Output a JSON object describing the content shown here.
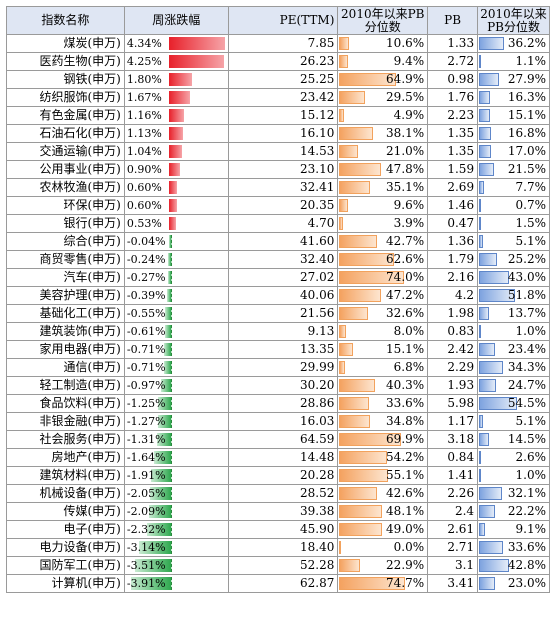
{
  "headers": {
    "name": "指数名称",
    "change": "周涨跌幅",
    "pe": "PE(TTM)",
    "pe_pct": "2010年以来PB分位数",
    "pb": "PB",
    "pb_pct": "2010年以来PB分位数"
  },
  "colors": {
    "header_bg": "#dfe6f3",
    "positive_bar": "#e8202a",
    "negative_bar": "#2fa84f",
    "pe_pct_bar": "#f4a260",
    "pb_pct_bar": "#7ea3df"
  },
  "rows": [
    {
      "name": "煤炭(申万)",
      "change": "4.34%",
      "pe": "7.85",
      "pe_pct": "10.6%",
      "pb": "1.33",
      "pb_pct": "36.2%"
    },
    {
      "name": "医药生物(申万)",
      "change": "4.25%",
      "pe": "26.23",
      "pe_pct": "9.4%",
      "pb": "2.72",
      "pb_pct": "1.1%"
    },
    {
      "name": "钢铁(申万)",
      "change": "1.80%",
      "pe": "25.25",
      "pe_pct": "64.9%",
      "pb": "0.98",
      "pb_pct": "27.9%"
    },
    {
      "name": "纺织服饰(申万)",
      "change": "1.67%",
      "pe": "23.42",
      "pe_pct": "29.5%",
      "pb": "1.76",
      "pb_pct": "16.3%"
    },
    {
      "name": "有色金属(申万)",
      "change": "1.16%",
      "pe": "15.12",
      "pe_pct": "4.9%",
      "pb": "2.23",
      "pb_pct": "15.1%"
    },
    {
      "name": "石油石化(申万)",
      "change": "1.13%",
      "pe": "16.10",
      "pe_pct": "38.1%",
      "pb": "1.35",
      "pb_pct": "16.8%"
    },
    {
      "name": "交通运输(申万)",
      "change": "1.04%",
      "pe": "14.53",
      "pe_pct": "21.0%",
      "pb": "1.35",
      "pb_pct": "17.0%"
    },
    {
      "name": "公用事业(申万)",
      "change": "0.90%",
      "pe": "23.10",
      "pe_pct": "47.8%",
      "pb": "1.59",
      "pb_pct": "21.5%"
    },
    {
      "name": "农林牧渔(申万)",
      "change": "0.60%",
      "pe": "32.41",
      "pe_pct": "35.1%",
      "pb": "2.69",
      "pb_pct": "7.7%"
    },
    {
      "name": "环保(申万)",
      "change": "0.60%",
      "pe": "20.35",
      "pe_pct": "9.6%",
      "pb": "1.46",
      "pb_pct": "0.7%"
    },
    {
      "name": "银行(申万)",
      "change": "0.53%",
      "pe": "4.70",
      "pe_pct": "3.9%",
      "pb": "0.47",
      "pb_pct": "1.5%"
    },
    {
      "name": "综合(申万)",
      "change": "-0.04%",
      "pe": "41.60",
      "pe_pct": "42.7%",
      "pb": "1.36",
      "pb_pct": "5.1%"
    },
    {
      "name": "商贸零售(申万)",
      "change": "-0.24%",
      "pe": "32.40",
      "pe_pct": "62.6%",
      "pb": "1.79",
      "pb_pct": "25.2%"
    },
    {
      "name": "汽车(申万)",
      "change": "-0.27%",
      "pe": "27.02",
      "pe_pct": "74.0%",
      "pb": "2.16",
      "pb_pct": "43.0%"
    },
    {
      "name": "美容护理(申万)",
      "change": "-0.39%",
      "pe": "40.06",
      "pe_pct": "47.2%",
      "pb": "4.2",
      "pb_pct": "51.8%"
    },
    {
      "name": "基础化工(申万)",
      "change": "-0.55%",
      "pe": "21.56",
      "pe_pct": "32.6%",
      "pb": "1.98",
      "pb_pct": "13.7%"
    },
    {
      "name": "建筑装饰(申万)",
      "change": "-0.61%",
      "pe": "9.13",
      "pe_pct": "8.0%",
      "pb": "0.83",
      "pb_pct": "1.0%"
    },
    {
      "name": "家用电器(申万)",
      "change": "-0.71%",
      "pe": "13.35",
      "pe_pct": "15.1%",
      "pb": "2.42",
      "pb_pct": "23.4%"
    },
    {
      "name": "通信(申万)",
      "change": "-0.71%",
      "pe": "29.99",
      "pe_pct": "6.8%",
      "pb": "2.29",
      "pb_pct": "34.3%"
    },
    {
      "name": "轻工制造(申万)",
      "change": "-0.97%",
      "pe": "30.20",
      "pe_pct": "40.3%",
      "pb": "1.93",
      "pb_pct": "24.7%"
    },
    {
      "name": "食品饮料(申万)",
      "change": "-1.25%",
      "pe": "28.86",
      "pe_pct": "33.6%",
      "pb": "5.98",
      "pb_pct": "54.5%"
    },
    {
      "name": "非银金融(申万)",
      "change": "-1.27%",
      "pe": "16.03",
      "pe_pct": "34.8%",
      "pb": "1.17",
      "pb_pct": "5.1%"
    },
    {
      "name": "社会服务(申万)",
      "change": "-1.31%",
      "pe": "64.59",
      "pe_pct": "69.9%",
      "pb": "3.18",
      "pb_pct": "14.5%"
    },
    {
      "name": "房地产(申万)",
      "change": "-1.64%",
      "pe": "14.48",
      "pe_pct": "54.2%",
      "pb": "0.84",
      "pb_pct": "2.6%"
    },
    {
      "name": "建筑材料(申万)",
      "change": "-1.91%",
      "pe": "20.28",
      "pe_pct": "55.1%",
      "pb": "1.41",
      "pb_pct": "1.0%"
    },
    {
      "name": "机械设备(申万)",
      "change": "-2.05%",
      "pe": "28.52",
      "pe_pct": "42.6%",
      "pb": "2.26",
      "pb_pct": "32.1%"
    },
    {
      "name": "传媒(申万)",
      "change": "-2.09%",
      "pe": "39.38",
      "pe_pct": "48.1%",
      "pb": "2.4",
      "pb_pct": "22.2%"
    },
    {
      "name": "电子(申万)",
      "change": "-2.32%",
      "pe": "45.90",
      "pe_pct": "49.0%",
      "pb": "2.61",
      "pb_pct": "9.1%"
    },
    {
      "name": "电力设备(申万)",
      "change": "-3.14%",
      "pe": "18.40",
      "pe_pct": "0.0%",
      "pb": "2.71",
      "pb_pct": "33.6%"
    },
    {
      "name": "国防军工(申万)",
      "change": "-3.51%",
      "pe": "52.28",
      "pe_pct": "22.9%",
      "pb": "3.1",
      "pb_pct": "42.8%"
    },
    {
      "name": "计算机(申万)",
      "change": "-3.91%",
      "pe": "62.87",
      "pe_pct": "74.7%",
      "pb": "3.41",
      "pb_pct": "23.0%"
    }
  ]
}
